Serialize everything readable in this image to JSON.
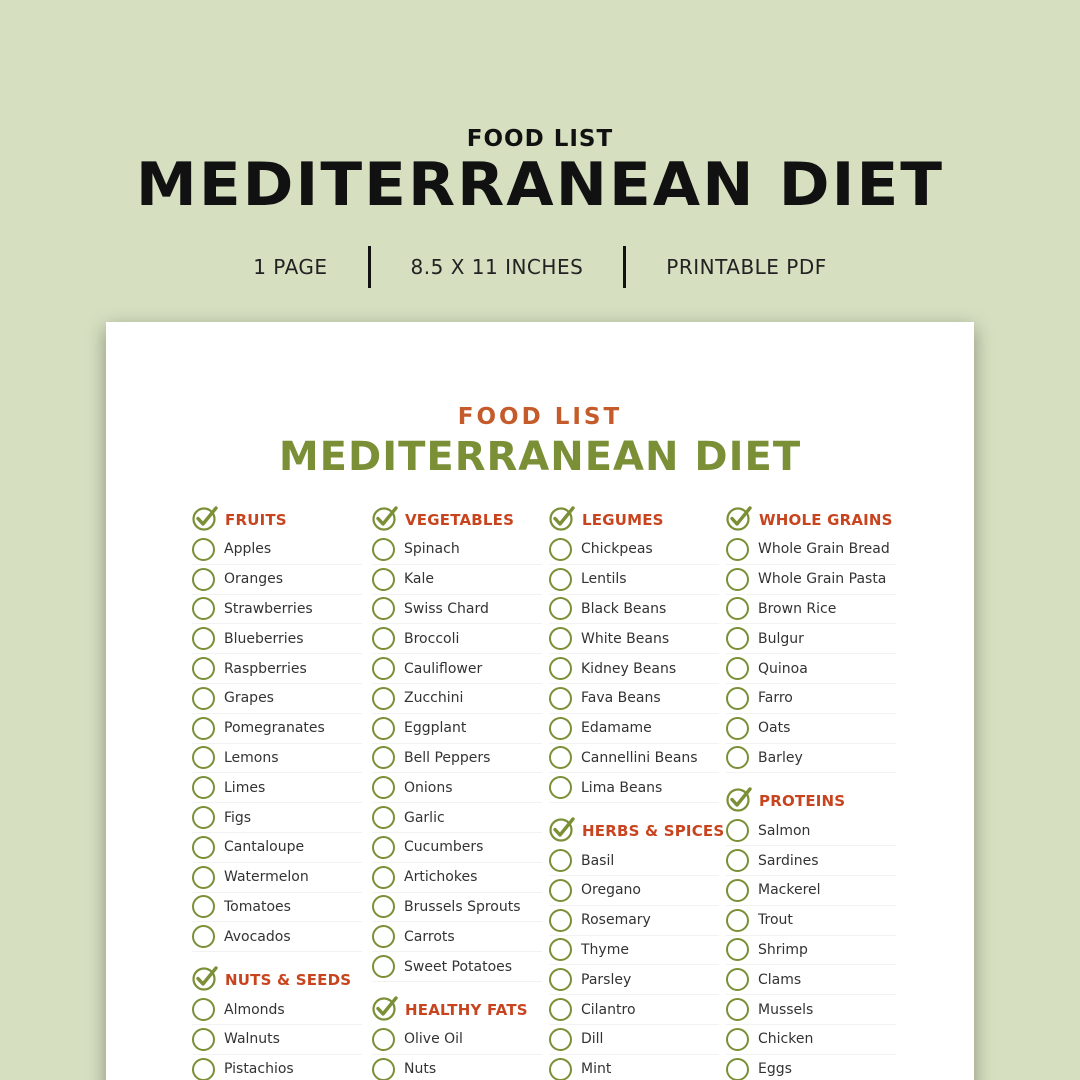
{
  "header": {
    "subtitle": "FOOD LIST",
    "title": "MEDITERRANEAN DIET",
    "info": [
      "1 PAGE",
      "8.5 X 11 INCHES",
      "PRINTABLE PDF"
    ]
  },
  "sheet": {
    "subtitle": "FOOD LIST",
    "title": "MEDITERRANEAN DIET"
  },
  "colors": {
    "background": "#d6dfc0",
    "accent_green": "#7a8f36",
    "section_red": "#c8441f",
    "subtitle_orange": "#c55a2a"
  },
  "columns": [
    [
      {
        "title": "FRUITS",
        "items": [
          "Apples",
          "Oranges",
          "Strawberries",
          "Blueberries",
          "Raspberries",
          "Grapes",
          "Pomegranates",
          "Lemons",
          "Limes",
          "Figs",
          "Cantaloupe",
          "Watermelon",
          "Tomatoes",
          "Avocados"
        ]
      },
      {
        "title": "NUTS & SEEDS",
        "items": [
          "Almonds",
          "Walnuts",
          "Pistachios"
        ]
      }
    ],
    [
      {
        "title": "VEGETABLES",
        "items": [
          "Spinach",
          "Kale",
          "Swiss Chard",
          "Broccoli",
          "Cauliflower",
          "Zucchini",
          "Eggplant",
          "Bell Peppers",
          "Onions",
          "Garlic",
          "Cucumbers",
          "Artichokes",
          "Brussels Sprouts",
          "Carrots",
          "Sweet Potatoes"
        ]
      },
      {
        "title": "HEALTHY FATS",
        "items": [
          "Olive Oil",
          "Nuts"
        ]
      }
    ],
    [
      {
        "title": "LEGUMES",
        "items": [
          "Chickpeas",
          "Lentils",
          "Black Beans",
          "White Beans",
          "Kidney Beans",
          "Fava Beans",
          "Edamame",
          "Cannellini Beans",
          "Lima Beans"
        ]
      },
      {
        "title": "HERBS & SPICES",
        "items": [
          "Basil",
          "Oregano",
          "Rosemary",
          "Thyme",
          "Parsley",
          "Cilantro",
          "Dill",
          "Mint"
        ]
      }
    ],
    [
      {
        "title": "WHOLE GRAINS",
        "items": [
          "Whole Grain Bread",
          "Whole Grain Pasta",
          "Brown Rice",
          "Bulgur",
          "Quinoa",
          "Farro",
          "Oats",
          "Barley"
        ]
      },
      {
        "title": "PROTEINS",
        "items": [
          "Salmon",
          "Sardines",
          "Mackerel",
          "Trout",
          "Shrimp",
          "Clams",
          "Mussels",
          "Chicken",
          "Eggs"
        ]
      }
    ]
  ]
}
